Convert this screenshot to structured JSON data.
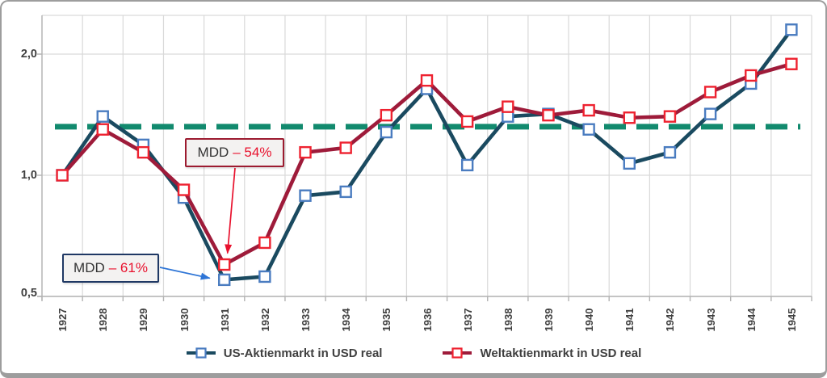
{
  "chart_data": {
    "type": "line",
    "title": "",
    "xlabel": "",
    "ylabel": "",
    "x_categories": [
      "1927",
      "1928",
      "1929",
      "1930",
      "1931",
      "1932",
      "1933",
      "1934",
      "1935",
      "1936",
      "1937",
      "1938",
      "1939",
      "1940",
      "1941",
      "1942",
      "1943",
      "1944",
      "1945"
    ],
    "y_axis": {
      "scale": "log2",
      "ticks": [
        "2,0",
        "1,0",
        "0,5"
      ],
      "tick_values": [
        2.0,
        1.0,
        0.5
      ],
      "range": [
        0.5,
        2.5
      ],
      "grid": true
    },
    "series": [
      {
        "name": "US-Aktienmarkt in USD real",
        "data_name": "us-series",
        "line_color": "#1a4a60",
        "marker_color": "#4a7cc0",
        "values": [
          1.0,
          1.4,
          1.19,
          0.88,
          0.55,
          0.56,
          0.89,
          0.91,
          1.28,
          1.64,
          1.06,
          1.4,
          1.42,
          1.3,
          1.07,
          1.14,
          1.42,
          1.69,
          2.3
        ]
      },
      {
        "name": "Weltaktienmarkt in USD real",
        "data_name": "world-series",
        "line_color": "#9e1b3a",
        "marker_color": "#ee2230",
        "values": [
          1.0,
          1.3,
          1.14,
          0.92,
          0.6,
          0.68,
          1.14,
          1.17,
          1.41,
          1.72,
          1.36,
          1.48,
          1.41,
          1.45,
          1.39,
          1.4,
          1.61,
          1.77,
          1.89
        ]
      }
    ],
    "reference_line": {
      "value": 1.32,
      "color": "#128a6e",
      "style": "dashed"
    },
    "annotations": [
      {
        "prefix": "MDD",
        "value": "– 54%",
        "box_border": "#9c1b30",
        "value_color": "#e8112d",
        "arrow_color": "#e8112d",
        "target_series": 1,
        "target_year": "1931"
      },
      {
        "prefix": "MDD",
        "value": "– 61%",
        "box_border": "#1f3864",
        "value_color": "#e8112d",
        "arrow_color": "#2e75d6",
        "target_series": 0,
        "target_year": "1931"
      }
    ],
    "legend_position": "bottom"
  },
  "colors": {
    "gridline": "#d9d9d9",
    "axis": "#b3b3b3",
    "text": "#3f3f3f",
    "frame_border": "#9d9d9d",
    "plot_bg": "#ffffff"
  }
}
